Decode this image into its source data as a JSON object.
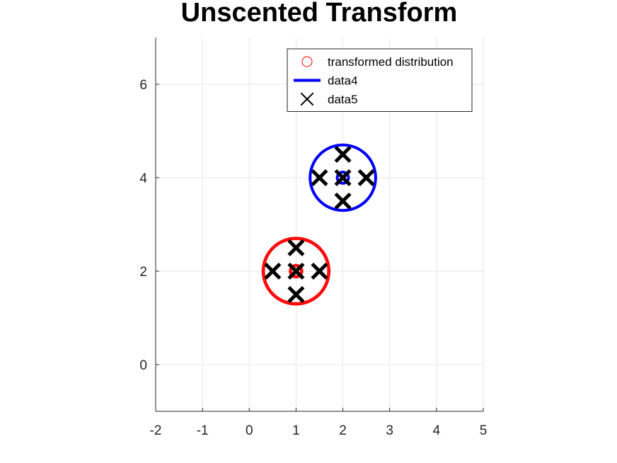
{
  "chart_data": {
    "type": "scatter",
    "title": "Unscented Transform",
    "xlabel": "",
    "ylabel": "",
    "xlim": [
      -2,
      5
    ],
    "ylim": [
      -1,
      7
    ],
    "x_ticks": [
      "-2",
      "-1",
      "0",
      "1",
      "2",
      "3",
      "4",
      "5"
    ],
    "y_ticks": [
      "0",
      "2",
      "4",
      "6"
    ],
    "grid": true,
    "legend_position": "top-right",
    "series": [
      {
        "name": "transformed distribution",
        "kind": "circle-markers",
        "color": "#ff0000",
        "rings": [
          {
            "center": [
              1,
              2
            ],
            "radius": 0.7
          },
          {
            "center": [
              1,
              2
            ],
            "radius": 0.12
          }
        ]
      },
      {
        "name": "",
        "kind": "ring",
        "color": "#0000ff",
        "center": [
          2,
          4
        ],
        "radius": 0.12
      },
      {
        "name": "",
        "kind": "x-markers",
        "color": "#000000",
        "points": [
          [
            1,
            2
          ],
          [
            1,
            2.5
          ],
          [
            1,
            1.5
          ],
          [
            0.5,
            2
          ],
          [
            1.5,
            2
          ]
        ]
      },
      {
        "name": "data4",
        "kind": "line",
        "color": "#0000ff",
        "center": [
          2,
          4
        ],
        "radius": 0.7
      },
      {
        "name": "data5",
        "kind": "x-markers",
        "color": "#000000",
        "points": [
          [
            2,
            4
          ],
          [
            2,
            4.5
          ],
          [
            2,
            3.5
          ],
          [
            1.5,
            4
          ],
          [
            2.5,
            4
          ]
        ]
      }
    ]
  }
}
